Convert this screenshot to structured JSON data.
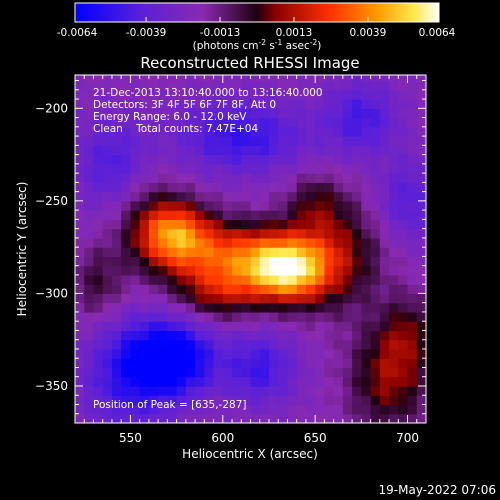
{
  "chart_data": {
    "type": "heatmap",
    "title": "Reconstructed RHESSI Image",
    "xlabel": "Heliocentric X (arcsec)",
    "ylabel": "Heliocentric Y (arcsec)",
    "xlim": [
      520,
      710
    ],
    "ylim": [
      -370,
      -182
    ],
    "xticks": [
      550,
      600,
      650,
      700
    ],
    "yticks": [
      -200,
      -250,
      -300,
      -350
    ],
    "colorbar": {
      "unit_prefix": "(photons cm",
      "exp1": "-2",
      "mid": " s",
      "exp2": "-1",
      "mid2": " asec",
      "exp3": "-2",
      "unit_suffix": ")",
      "range": [
        -0.0064,
        0.0064
      ],
      "tick_values": [
        -0.0064,
        -0.0039,
        -0.0013,
        0.0013,
        0.0039,
        0.0064
      ],
      "tick_labels": [
        "-0.0064",
        "-0.0039",
        "-0.0013",
        "0.0013",
        "0.0039",
        "0.0064"
      ]
    },
    "annotations": [
      "21-Dec-2013 13:10:40.000 to 13:16:40.000",
      "Detectors: 3F 4F 5F 6F 7F 8F, Att 0",
      "Energy Range: 6.0 - 12.0 keV",
      "Clean    Total counts: 7.47E+04"
    ],
    "peak_label": "Position of Peak = [635,-287]",
    "peak": [
      635,
      -287
    ],
    "colormap": [
      "#000000",
      "#1a1aff",
      "#6b22c4",
      "#8f2ea8",
      "#c01818",
      "#ff5a00",
      "#ffb000",
      "#ffff70",
      "#ffffff"
    ],
    "sources": [
      {
        "x": 635,
        "y": -287,
        "sx": 15,
        "sy": 12,
        "amp": 0.0066
      },
      {
        "x": 605,
        "y": -280,
        "sx": 22,
        "sy": 13,
        "amp": 0.0046
      },
      {
        "x": 575,
        "y": -268,
        "sx": 13,
        "sy": 12,
        "amp": 0.0048
      },
      {
        "x": 660,
        "y": -278,
        "sx": 18,
        "sy": 20,
        "amp": 0.003
      },
      {
        "x": 598,
        "y": -300,
        "sx": 16,
        "sy": 10,
        "amp": 0.0025
      },
      {
        "x": 560,
        "y": -262,
        "sx": 14,
        "sy": 18,
        "amp": 0.002
      },
      {
        "x": 650,
        "y": -250,
        "sx": 10,
        "sy": 10,
        "amp": 0.0016
      },
      {
        "x": 690,
        "y": -345,
        "sx": 15,
        "sy": 20,
        "amp": 0.003
      },
      {
        "x": 700,
        "y": -320,
        "sx": 10,
        "sy": 14,
        "amp": 0.0018
      },
      {
        "x": 532,
        "y": -295,
        "sx": 10,
        "sy": 14,
        "amp": 0.0018
      },
      {
        "x": 572,
        "y": -335,
        "sx": 16,
        "sy": 14,
        "amp": -0.005
      },
      {
        "x": 548,
        "y": -345,
        "sx": 18,
        "sy": 22,
        "amp": -0.0026
      },
      {
        "x": 620,
        "y": -340,
        "sx": 14,
        "sy": 14,
        "amp": -0.0026
      },
      {
        "x": 610,
        "y": -215,
        "sx": 25,
        "sy": 14,
        "amp": -0.0028
      },
      {
        "x": 675,
        "y": -205,
        "sx": 14,
        "sy": 14,
        "amp": -0.0024
      },
      {
        "x": 540,
        "y": -230,
        "sx": 14,
        "sy": 18,
        "amp": -0.0022
      },
      {
        "x": 700,
        "y": -250,
        "sx": 12,
        "sy": 16,
        "amp": -0.002
      }
    ]
  },
  "footer_date": "19-May-2022 07:06"
}
